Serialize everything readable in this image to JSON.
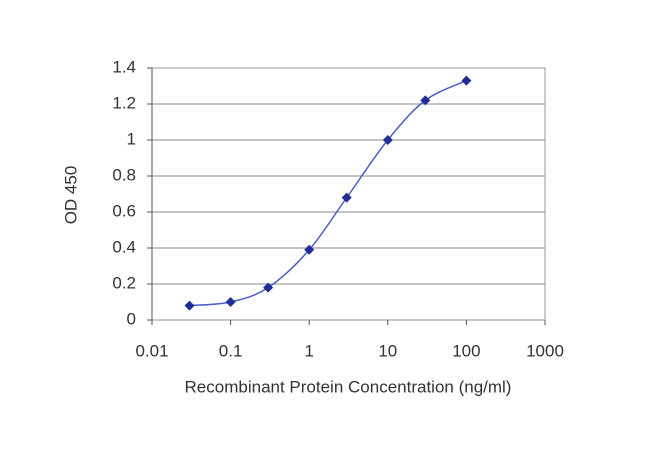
{
  "chart_data": {
    "type": "line",
    "x_label": "Recombinant Protein Concentration (ng/ml)",
    "y_label": "OD 450",
    "x": [
      0.03,
      0.1,
      0.3,
      1,
      3,
      10,
      30,
      100
    ],
    "series": [
      {
        "name": "OD 450",
        "color": "#4a5cc8",
        "marker_color": "#1f2e96",
        "values": [
          0.08,
          0.1,
          0.18,
          0.39,
          0.68,
          1.0,
          1.22,
          1.33
        ]
      }
    ],
    "xscale": "log",
    "xlim": [
      0.01,
      1000
    ],
    "xticks": [
      0.01,
      0.1,
      1,
      10,
      100,
      1000
    ],
    "ylim": [
      0,
      1.4
    ],
    "yticks": [
      0,
      0.2,
      0.4,
      0.6,
      0.8,
      1,
      1.2,
      1.4
    ],
    "grid": true
  }
}
